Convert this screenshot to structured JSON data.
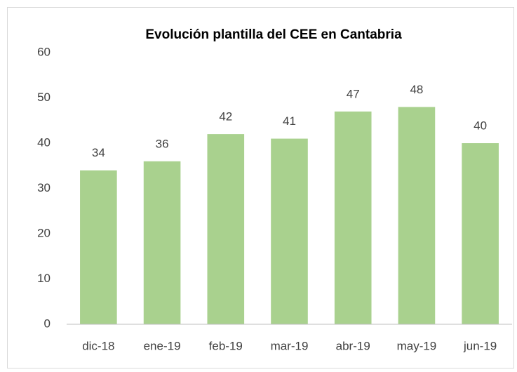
{
  "chart_data": {
    "type": "bar",
    "title": "Evolución plantilla del CEE en Cantabria",
    "categories": [
      "dic-18",
      "ene-19",
      "feb-19",
      "mar-19",
      "abr-19",
      "may-19",
      "jun-19"
    ],
    "values": [
      34,
      36,
      42,
      41,
      47,
      48,
      40
    ],
    "color": "#a9d18e",
    "ylim": [
      0,
      60
    ],
    "yticks": [
      0,
      10,
      20,
      30,
      40,
      50,
      60
    ],
    "grid": false
  }
}
